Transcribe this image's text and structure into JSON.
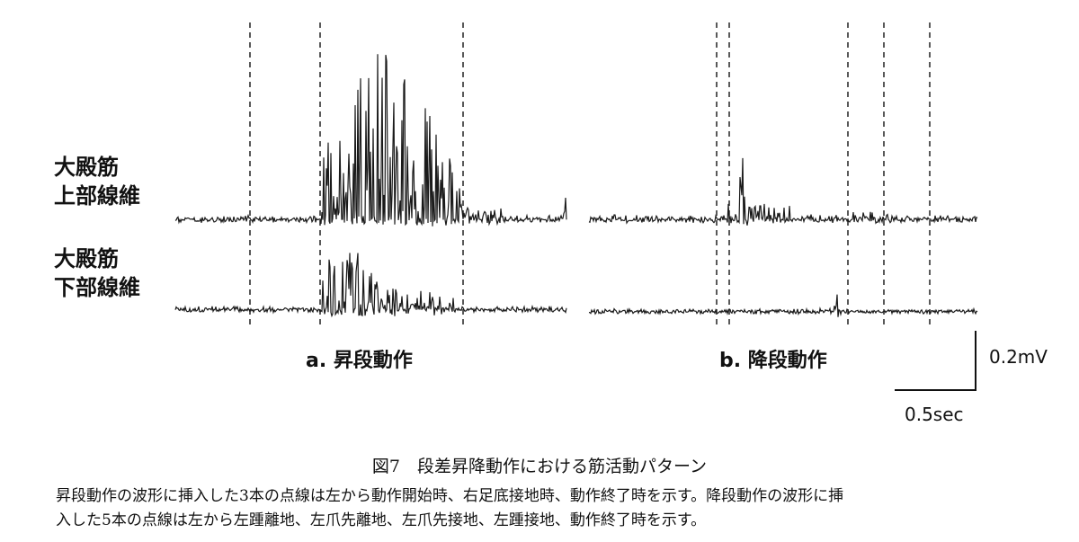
{
  "figure": {
    "row_labels": [
      [
        "大殿筋",
        "上部線維"
      ],
      [
        "大殿筋",
        "下部線維"
      ]
    ],
    "panels": [
      {
        "label": "a. 昇段動作"
      },
      {
        "label": "b. 降段動作"
      }
    ],
    "scale_bar": {
      "vertical": "0.2mV",
      "horizontal": "0.5sec"
    },
    "caption": {
      "title": "図7　段差昇降動作における筋活動パターン",
      "lines": [
        "昇段動作の波形に挿入した3本の点線は左から動作開始時、右足底接地時、動作終了時を示す。降段動作の波形に挿",
        "入した5本の点線は左から左踵離地、左爪先離地、左爪先接地、左踵接地、動作終了時を示す。"
      ]
    }
  }
}
